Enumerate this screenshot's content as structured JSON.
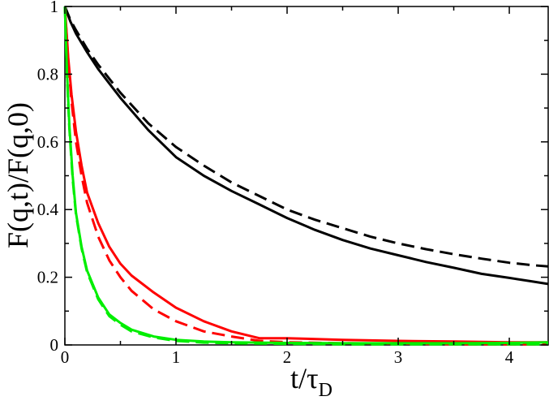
{
  "chart_data": {
    "type": "line",
    "xlabel": {
      "main": "t/τ",
      "sub": "D"
    },
    "ylabel": "F(q,t)/F(q,0)",
    "xlim": [
      0,
      4.35
    ],
    "ylim": [
      0,
      1
    ],
    "x_ticks": [
      0,
      1,
      2,
      3,
      4
    ],
    "x_tick_labels": [
      "0",
      "1",
      "2",
      "3",
      "4"
    ],
    "y_ticks": [
      0,
      0.2,
      0.4,
      0.6,
      0.8,
      1
    ],
    "y_tick_labels": [
      "0",
      "0.2",
      "0.4",
      "0.6",
      "0.8",
      "1"
    ],
    "grid": false,
    "legend": "none",
    "series": [
      {
        "color": "#000000",
        "dash": "solid",
        "x": [
          0,
          0.05,
          0.1,
          0.2,
          0.3,
          0.5,
          0.75,
          1.0,
          1.25,
          1.5,
          1.75,
          2.0,
          2.25,
          2.5,
          2.75,
          3.0,
          3.25,
          3.5,
          3.75,
          4.0,
          4.2,
          4.35
        ],
        "y": [
          1.0,
          0.955,
          0.92,
          0.865,
          0.815,
          0.73,
          0.635,
          0.555,
          0.5,
          0.455,
          0.415,
          0.375,
          0.34,
          0.31,
          0.285,
          0.265,
          0.245,
          0.228,
          0.21,
          0.198,
          0.188,
          0.18
        ]
      },
      {
        "color": "#000000",
        "dash": "dashed",
        "x": [
          0,
          0.05,
          0.1,
          0.2,
          0.3,
          0.5,
          0.75,
          1.0,
          1.25,
          1.5,
          1.75,
          2.0,
          2.25,
          2.5,
          2.75,
          3.0,
          3.25,
          3.5,
          3.75,
          4.0,
          4.2,
          4.35
        ],
        "y": [
          1.0,
          0.96,
          0.93,
          0.875,
          0.828,
          0.745,
          0.655,
          0.585,
          0.53,
          0.48,
          0.44,
          0.4,
          0.37,
          0.345,
          0.32,
          0.3,
          0.283,
          0.268,
          0.255,
          0.243,
          0.236,
          0.232
        ]
      },
      {
        "color": "#ff0000",
        "dash": "solid",
        "x": [
          0,
          0.03,
          0.06,
          0.1,
          0.15,
          0.2,
          0.3,
          0.4,
          0.5,
          0.6,
          0.8,
          1.0,
          1.25,
          1.5,
          1.75,
          2.0,
          2.5,
          3.0,
          3.5,
          4.0,
          4.35
        ],
        "y": [
          1.0,
          0.85,
          0.74,
          0.63,
          0.53,
          0.45,
          0.36,
          0.29,
          0.24,
          0.205,
          0.155,
          0.11,
          0.07,
          0.04,
          0.02,
          0.02,
          0.015,
          0.012,
          0.01,
          0.008,
          0.008
        ]
      },
      {
        "color": "#ff0000",
        "dash": "dashed",
        "x": [
          0,
          0.03,
          0.06,
          0.1,
          0.15,
          0.2,
          0.3,
          0.4,
          0.5,
          0.6,
          0.8,
          1.0,
          1.25,
          1.5,
          1.75,
          2.0,
          2.5,
          3.0,
          3.5,
          4.0,
          4.35
        ],
        "y": [
          1.0,
          0.84,
          0.72,
          0.6,
          0.5,
          0.42,
          0.32,
          0.25,
          0.2,
          0.16,
          0.105,
          0.07,
          0.04,
          0.025,
          0.012,
          0.008,
          0.005,
          0.004,
          0.002,
          0.002,
          0.002
        ]
      },
      {
        "color": "#00ee00",
        "dash": "solid",
        "x": [
          0,
          0.02,
          0.04,
          0.07,
          0.1,
          0.15,
          0.2,
          0.3,
          0.4,
          0.5,
          0.6,
          0.8,
          1.0,
          1.25,
          1.5,
          2.0,
          2.5,
          3.0,
          3.5,
          4.0,
          4.35
        ],
        "y": [
          1.0,
          0.8,
          0.65,
          0.5,
          0.39,
          0.29,
          0.22,
          0.14,
          0.09,
          0.065,
          0.045,
          0.025,
          0.015,
          0.01,
          0.008,
          0.006,
          0.005,
          0.005,
          0.005,
          0.006,
          0.008
        ]
      },
      {
        "color": "#00ee00",
        "dash": "dashed",
        "x": [
          0,
          0.02,
          0.04,
          0.07,
          0.1,
          0.15,
          0.2,
          0.3,
          0.4,
          0.5,
          0.6,
          0.8,
          1.0,
          1.25,
          1.5,
          2.0,
          2.5,
          3.0,
          3.5,
          4.0,
          4.35
        ],
        "y": [
          1.0,
          0.79,
          0.64,
          0.49,
          0.385,
          0.285,
          0.215,
          0.135,
          0.085,
          0.06,
          0.04,
          0.022,
          0.012,
          0.007,
          0.005,
          0.003,
          0.002,
          0.002,
          0.002,
          0.002,
          0.002
        ]
      }
    ]
  }
}
